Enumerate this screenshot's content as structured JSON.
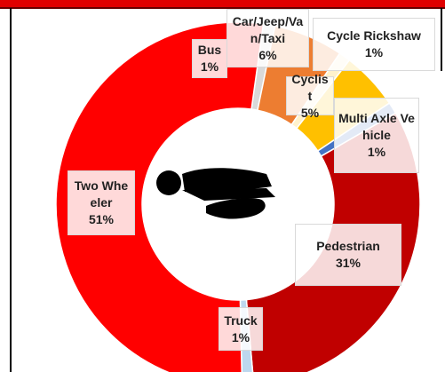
{
  "chart_data": {
    "type": "donut",
    "categories": [
      "Bus",
      "Car/Jeep/Van/Taxi",
      "Cycle Rickshaw",
      "Cyclist",
      "Multi Axle Vehicle",
      "Pedestrian",
      "Truck",
      "Two Wheeler"
    ],
    "values": [
      1,
      6,
      1,
      5,
      1,
      31,
      1,
      51
    ],
    "value_labels": [
      "1%",
      "6%",
      "1%",
      "5%",
      "1%",
      "31%",
      "1%",
      "51%"
    ],
    "colors": [
      "#d9d9d9",
      "#ed7d31",
      "#fff2cc",
      "#ffc000",
      "#4472c4",
      "#c00000",
      "#bdd7ee",
      "#ff0000"
    ]
  }
}
